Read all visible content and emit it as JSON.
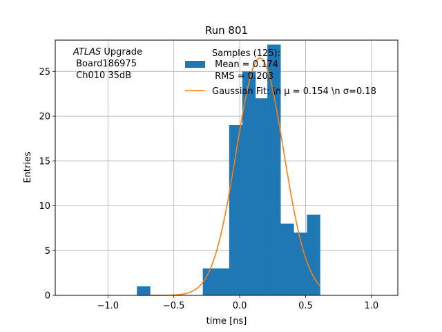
{
  "chart_data": {
    "type": "bar",
    "title": "Run 801",
    "xlabel": "time [ns]",
    "ylabel": "Entries",
    "xlim": [
      -1.4,
      1.2
    ],
    "ylim": [
      0,
      28.5
    ],
    "xticks": [
      -1.0,
      -0.5,
      0.0,
      0.5,
      1.0
    ],
    "xtick_labels": [
      "−1.0",
      "−0.5",
      "0.0",
      "0.5",
      "1.0"
    ],
    "yticks": [
      0,
      5,
      10,
      15,
      20,
      25
    ],
    "ytick_labels": [
      "0",
      "5",
      "10",
      "15",
      "20",
      "25"
    ],
    "grid": true,
    "histogram": {
      "name": "Samples",
      "color": "#1f77b4",
      "bins": [
        {
          "x0": -0.78,
          "x1": -0.68,
          "count": 1
        },
        {
          "x0": -0.28,
          "x1": -0.18,
          "count": 3
        },
        {
          "x0": -0.18,
          "x1": -0.08,
          "count": 3
        },
        {
          "x0": -0.08,
          "x1": 0.02,
          "count": 19
        },
        {
          "x0": 0.02,
          "x1": 0.12,
          "count": 25
        },
        {
          "x0": 0.12,
          "x1": 0.21,
          "count": 22
        },
        {
          "x0": 0.21,
          "x1": 0.31,
          "count": 28
        },
        {
          "x0": 0.31,
          "x1": 0.41,
          "count": 8
        },
        {
          "x0": 0.41,
          "x1": 0.51,
          "count": 7
        },
        {
          "x0": 0.51,
          "x1": 0.61,
          "count": 9
        }
      ]
    },
    "gaussian_fit": {
      "color": "#ff7f0e",
      "mu": 0.154,
      "sigma": 0.18,
      "amplitude": 26.5,
      "x_range": [
        -0.78,
        0.61
      ]
    },
    "legend": {
      "placement": "upper center",
      "entries": [
        {
          "kind": "patch",
          "lines": [
            "Samples (125):",
            " Mean = 0.174",
            " RMS = 0.203"
          ]
        },
        {
          "kind": "line",
          "lines": [
            "Gaussian Fit: \\n μ = 0.154 \\n σ=0.18"
          ]
        }
      ]
    },
    "annotation": {
      "placement": "upper left",
      "line1_italic": "ATLAS",
      "line1_rest": " Upgrade",
      "line2": " Board186975",
      "line3": " Ch010 35dB"
    }
  }
}
